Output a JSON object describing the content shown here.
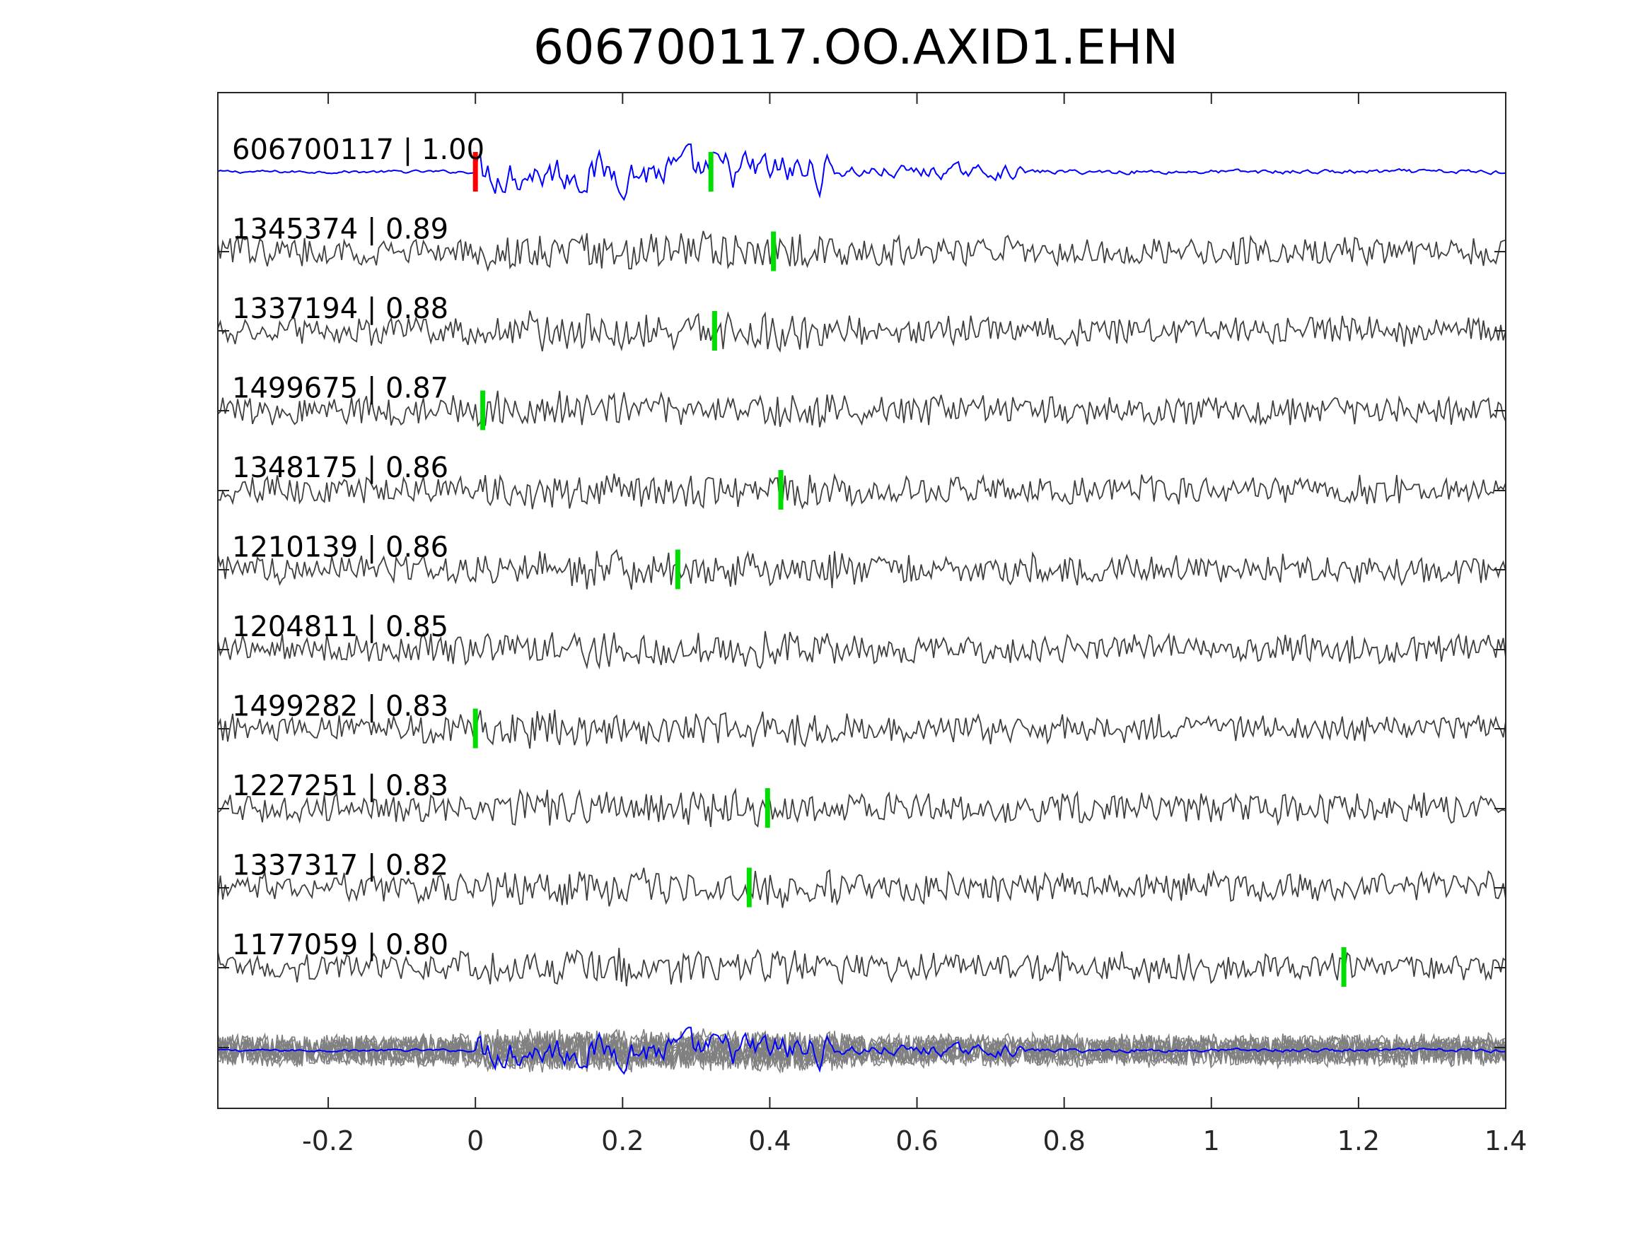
{
  "chart_data": {
    "type": "line",
    "title": "606700117.OO.AXID1.EHN",
    "xlabel": "",
    "ylabel": "",
    "xlim": [
      -0.35,
      1.4
    ],
    "xticks": [
      -0.2,
      0,
      0.2,
      0.4,
      0.6,
      0.8,
      1,
      1.2,
      1.4
    ],
    "xtick_labels": [
      "-0.2",
      "0",
      "0.2",
      "0.4",
      "0.6",
      "0.8",
      "1",
      "1.2",
      "1.4"
    ],
    "grid": false,
    "reference_pick_x": 0.0,
    "series": [
      {
        "name": "606700117 | 1.00",
        "pick_x": 0.32,
        "color": "#0000ff"
      },
      {
        "name": "1345374 | 0.89",
        "pick_x": 0.405,
        "color": "#3f3f3f"
      },
      {
        "name": "1337194 | 0.88",
        "pick_x": 0.325,
        "color": "#3f3f3f"
      },
      {
        "name": "1499675 | 0.87",
        "pick_x": 0.01,
        "color": "#3f3f3f"
      },
      {
        "name": "1348175 | 0.86",
        "pick_x": 0.415,
        "color": "#3f3f3f"
      },
      {
        "name": "1210139 | 0.86",
        "pick_x": 0.275,
        "color": "#3f3f3f"
      },
      {
        "name": "1204811 | 0.85",
        "pick_x": null,
        "color": "#3f3f3f"
      },
      {
        "name": "1499282 | 0.83",
        "pick_x": 0.0,
        "color": "#3f3f3f"
      },
      {
        "name": "1227251 | 0.83",
        "pick_x": 0.397,
        "color": "#3f3f3f"
      },
      {
        "name": "1337317 | 0.82",
        "pick_x": 0.372,
        "color": "#3f3f3f"
      },
      {
        "name": "1177059 | 0.80",
        "pick_x": 1.18,
        "color": "#3f3f3f"
      }
    ],
    "stack_color": "#808080",
    "reference_pick_color": "#ff0000",
    "pick_color": "#00dd00"
  }
}
